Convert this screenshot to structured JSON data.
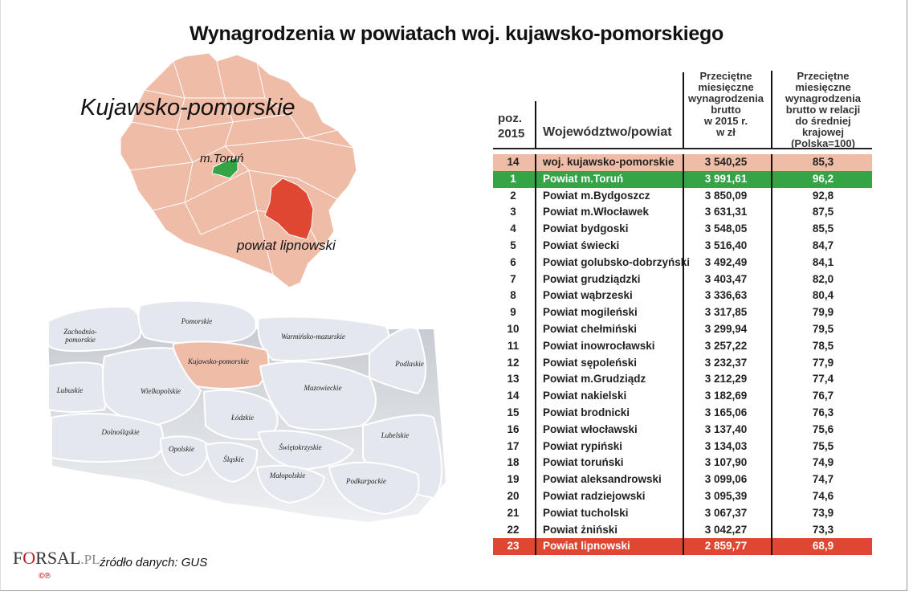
{
  "title": "Wynagrodzenia w powiatach woj. kujawsko-pomorskiego",
  "region_map": {
    "region_label": "Kujawsko-pomorskie",
    "highlight_best_label": "m.Toruń",
    "highlight_worst_label": "powiat lipnowski",
    "colors": {
      "base": "#efbca8",
      "best": "#34a447",
      "worst": "#e04732",
      "borders": "#ffffff"
    }
  },
  "poland_map": {
    "highlighted": "Kujawsko-pomorskie",
    "voivodeships": [
      "Zachodnio-",
      "pomorskie",
      "Pomorskie",
      "Warmińsko-mazurskie",
      "Kujawsko-pomorskie",
      "Podlaskie",
      "Lubuskie",
      "Wielkopolskie",
      "Mazowieckie",
      "Łódzkie",
      "Dolnośląskie",
      "Lubelskie",
      "Opolskie",
      "Świętokrzyskie",
      "Śląskie",
      "Małopolskie",
      "Podkarpackie"
    ]
  },
  "table": {
    "headers": {
      "pos": [
        "poz.",
        "2015"
      ],
      "name": "Województwo/powiat",
      "salary": [
        "Przeciętne",
        "miesięczne",
        "wynagrodzenia",
        "brutto",
        "w 2015 r.",
        "w zł"
      ],
      "relative": [
        "Przeciętne",
        "miesięczne",
        "wynagrodzenia",
        "brutto w relacji",
        "do średniej krajowej",
        "(Polska=100)"
      ]
    },
    "rows": [
      {
        "pos": "14",
        "name": "woj. kujawsko-pomorskie",
        "salary": "3 540,25",
        "rel": "85,3",
        "style": "hl-pink"
      },
      {
        "pos": "1",
        "name": "Powiat m.Toruń",
        "salary": "3 991,61",
        "rel": "96,2",
        "style": "hl-green"
      },
      {
        "pos": "2",
        "name": "Powiat m.Bydgoszcz",
        "salary": "3 850,09",
        "rel": "92,8",
        "style": ""
      },
      {
        "pos": "3",
        "name": "Powiat m.Włocławek",
        "salary": "3 631,31",
        "rel": "87,5",
        "style": ""
      },
      {
        "pos": "4",
        "name": "Powiat bydgoski",
        "salary": "3 548,05",
        "rel": "85,5",
        "style": ""
      },
      {
        "pos": "5",
        "name": "Powiat świecki",
        "salary": "3 516,40",
        "rel": "84,7",
        "style": ""
      },
      {
        "pos": "6",
        "name": "Powiat golubsko-dobrzyński",
        "salary": "3 492,49",
        "rel": "84,1",
        "style": ""
      },
      {
        "pos": "7",
        "name": "Powiat grudziądzki",
        "salary": "3 403,47",
        "rel": "82,0",
        "style": ""
      },
      {
        "pos": "8",
        "name": "Powiat wąbrzeski",
        "salary": "3 336,63",
        "rel": "80,4",
        "style": ""
      },
      {
        "pos": "9",
        "name": "Powiat mogileński",
        "salary": "3 317,85",
        "rel": "79,9",
        "style": ""
      },
      {
        "pos": "10",
        "name": "Powiat chełmiński",
        "salary": "3 299,94",
        "rel": "79,5",
        "style": ""
      },
      {
        "pos": "11",
        "name": "Powiat inowrocławski",
        "salary": "3 257,22",
        "rel": "78,5",
        "style": ""
      },
      {
        "pos": "12",
        "name": "Powiat sępoleński",
        "salary": "3 232,37",
        "rel": "77,9",
        "style": ""
      },
      {
        "pos": "13",
        "name": "Powiat m.Grudziądz",
        "salary": "3 212,29",
        "rel": "77,4",
        "style": ""
      },
      {
        "pos": "14",
        "name": "Powiat nakielski",
        "salary": "3 182,69",
        "rel": "76,7",
        "style": ""
      },
      {
        "pos": "15",
        "name": "Powiat brodnicki",
        "salary": "3 165,06",
        "rel": "76,3",
        "style": ""
      },
      {
        "pos": "16",
        "name": "Powiat włocławski",
        "salary": "3 137,40",
        "rel": "75,6",
        "style": ""
      },
      {
        "pos": "17",
        "name": "Powiat rypiński",
        "salary": "3 134,03",
        "rel": "75,5",
        "style": ""
      },
      {
        "pos": "18",
        "name": "Powiat toruński",
        "salary": "3 107,90",
        "rel": "74,9",
        "style": ""
      },
      {
        "pos": "19",
        "name": "Powiat aleksandrowski",
        "salary": "3 099,06",
        "rel": "74,7",
        "style": ""
      },
      {
        "pos": "20",
        "name": "Powiat radziejowski",
        "salary": "3 095,39",
        "rel": "74,6",
        "style": ""
      },
      {
        "pos": "21",
        "name": "Powiat tucholski",
        "salary": "3 067,37",
        "rel": "73,9",
        "style": ""
      },
      {
        "pos": "22",
        "name": "Powiat żniński",
        "salary": "3 042,27",
        "rel": "73,3",
        "style": ""
      },
      {
        "pos": "23",
        "name": "Powiat lipnowski",
        "salary": "2 859,77",
        "rel": "68,9",
        "style": "hl-red"
      }
    ]
  },
  "footer": {
    "logo": {
      "pre": "F",
      "o": "O",
      "post": "RSAL",
      "dot_pl": ".PL"
    },
    "copyright": "©℗",
    "source": "źródło danych: GUS"
  },
  "chart_data": {
    "type": "table",
    "title": "Wynagrodzenia w powiatach woj. kujawsko-pomorskiego",
    "columns": [
      "poz. 2015",
      "Województwo/powiat",
      "Przeciętne miesięczne wynagrodzenia brutto w 2015 r. w zł",
      "Przeciętne miesięczne wynagrodzenia brutto w relacji do średniej krajowej (Polska=100)"
    ],
    "rows": [
      [
        14,
        "woj. kujawsko-pomorskie",
        3540.25,
        85.3
      ],
      [
        1,
        "Powiat m.Toruń",
        3991.61,
        96.2
      ],
      [
        2,
        "Powiat m.Bydgoszcz",
        3850.09,
        92.8
      ],
      [
        3,
        "Powiat m.Włocławek",
        3631.31,
        87.5
      ],
      [
        4,
        "Powiat bydgoski",
        3548.05,
        85.5
      ],
      [
        5,
        "Powiat świecki",
        3516.4,
        84.7
      ],
      [
        6,
        "Powiat golubsko-dobrzyński",
        3492.49,
        84.1
      ],
      [
        7,
        "Powiat grudziądzki",
        3403.47,
        82.0
      ],
      [
        8,
        "Powiat wąbrzeski",
        3336.63,
        80.4
      ],
      [
        9,
        "Powiat mogileński",
        3317.85,
        79.9
      ],
      [
        10,
        "Powiat chełmiński",
        3299.94,
        79.5
      ],
      [
        11,
        "Powiat inowrocławski",
        3257.22,
        78.5
      ],
      [
        12,
        "Powiat sępoleński",
        3232.37,
        77.9
      ],
      [
        13,
        "Powiat m.Grudziądz",
        3212.29,
        77.4
      ],
      [
        14,
        "Powiat nakielski",
        3182.69,
        76.7
      ],
      [
        15,
        "Powiat brodnicki",
        3165.06,
        76.3
      ],
      [
        16,
        "Powiat włocławski",
        3137.4,
        75.6
      ],
      [
        17,
        "Powiat rypiński",
        3134.03,
        75.5
      ],
      [
        18,
        "Powiat toruński",
        3107.9,
        74.9
      ],
      [
        19,
        "Powiat aleksandrowski",
        3099.06,
        74.7
      ],
      [
        20,
        "Powiat radziejowski",
        3095.39,
        74.6
      ],
      [
        21,
        "Powiat tucholski",
        3067.37,
        73.9
      ],
      [
        22,
        "Powiat żniński",
        3042.27,
        73.3
      ],
      [
        23,
        "Powiat lipnowski",
        2859.77,
        68.9
      ]
    ],
    "highlights": {
      "Powiat m.Toruń": "#34a447",
      "Powiat lipnowski": "#e04732",
      "woj. kujawsko-pomorskie": "#efbca8"
    },
    "source": "źródło danych: GUS"
  }
}
